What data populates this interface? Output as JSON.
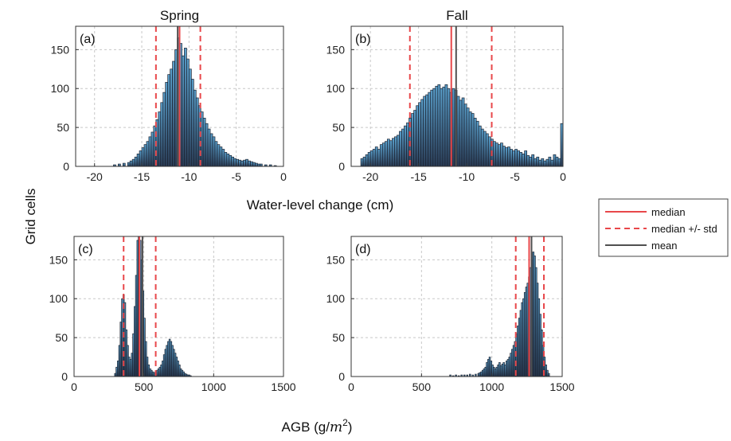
{
  "figure": {
    "ylabel": "Grid cells",
    "xlabel_top": "Water-level change (cm)",
    "xlabel_bottom_prefix": "AGB (g/",
    "xlabel_bottom_var": "m",
    "xlabel_bottom_exp": "2",
    "xlabel_bottom_suffix": ")"
  },
  "legend": {
    "items": [
      {
        "label": "median",
        "color": "#e8474a",
        "style": "solid"
      },
      {
        "label": "median +/- std",
        "color": "#e8474a",
        "style": "dashed"
      },
      {
        "label": "mean",
        "color": "#505050",
        "style": "solid"
      }
    ]
  },
  "colors": {
    "bar_top": "#5aa0cc",
    "bar_bottom": "#2a3c55",
    "bar_edge": "#1b2230",
    "median": "#e8474a",
    "mean": "#505050"
  },
  "chart_data": [
    {
      "type": "bar",
      "id": "a",
      "title": "Spring",
      "tag": "(a)",
      "xlim": [
        -22,
        0
      ],
      "ylim": [
        0,
        180
      ],
      "xticks": [
        -20,
        -15,
        -10,
        -5,
        0
      ],
      "yticks": [
        0,
        50,
        100,
        150
      ],
      "grid": true,
      "bin_width": 0.25,
      "bins": [
        [
          -18.0,
          2
        ],
        [
          -17.5,
          3
        ],
        [
          -17.0,
          4
        ],
        [
          -16.5,
          5
        ],
        [
          -16.25,
          7
        ],
        [
          -16.0,
          9
        ],
        [
          -15.75,
          12
        ],
        [
          -15.5,
          16
        ],
        [
          -15.25,
          20
        ],
        [
          -15.0,
          24
        ],
        [
          -14.75,
          28
        ],
        [
          -14.5,
          32
        ],
        [
          -14.25,
          38
        ],
        [
          -14.0,
          44
        ],
        [
          -13.75,
          52
        ],
        [
          -13.5,
          60
        ],
        [
          -13.25,
          70
        ],
        [
          -13.0,
          82
        ],
        [
          -12.75,
          95
        ],
        [
          -12.5,
          108
        ],
        [
          -12.25,
          118
        ],
        [
          -12.0,
          125
        ],
        [
          -11.75,
          135
        ],
        [
          -11.5,
          150
        ],
        [
          -11.25,
          165
        ],
        [
          -11.0,
          158
        ],
        [
          -10.75,
          142
        ],
        [
          -10.5,
          152
        ],
        [
          -10.25,
          138
        ],
        [
          -10.0,
          125
        ],
        [
          -9.75,
          112
        ],
        [
          -9.5,
          98
        ],
        [
          -9.25,
          88
        ],
        [
          -9.0,
          78
        ],
        [
          -8.75,
          70
        ],
        [
          -8.5,
          62
        ],
        [
          -8.25,
          55
        ],
        [
          -8.0,
          48
        ],
        [
          -7.75,
          42
        ],
        [
          -7.5,
          38
        ],
        [
          -7.25,
          32
        ],
        [
          -7.0,
          28
        ],
        [
          -6.75,
          25
        ],
        [
          -6.5,
          22
        ],
        [
          -6.25,
          18
        ],
        [
          -6.0,
          16
        ],
        [
          -5.75,
          14
        ],
        [
          -5.5,
          12
        ],
        [
          -5.25,
          10
        ],
        [
          -5.0,
          9
        ],
        [
          -4.75,
          8
        ],
        [
          -4.5,
          7
        ],
        [
          -4.25,
          8
        ],
        [
          -4.0,
          9
        ],
        [
          -3.75,
          7
        ],
        [
          -3.5,
          6
        ],
        [
          -3.25,
          5
        ],
        [
          -3.0,
          4
        ],
        [
          -2.75,
          3
        ],
        [
          -2.5,
          3
        ],
        [
          -2.0,
          2
        ],
        [
          -1.5,
          2
        ],
        [
          -1.0,
          1
        ]
      ],
      "median": -11.0,
      "median_minus_std": -13.5,
      "median_plus_std": -8.8,
      "mean": -11.2
    },
    {
      "type": "bar",
      "id": "b",
      "title": "Fall",
      "tag": "(b)",
      "xlim": [
        -22,
        0
      ],
      "ylim": [
        0,
        180
      ],
      "xticks": [
        -20,
        -15,
        -10,
        -5,
        0
      ],
      "yticks": [
        0,
        50,
        100,
        150
      ],
      "grid": true,
      "bin_width": 0.25,
      "bins": [
        [
          -21.0,
          10
        ],
        [
          -20.75,
          12
        ],
        [
          -20.5,
          15
        ],
        [
          -20.25,
          18
        ],
        [
          -20.0,
          20
        ],
        [
          -19.75,
          22
        ],
        [
          -19.5,
          25
        ],
        [
          -19.25,
          22
        ],
        [
          -19.0,
          28
        ],
        [
          -18.75,
          30
        ],
        [
          -18.5,
          32
        ],
        [
          -18.25,
          35
        ],
        [
          -18.0,
          33
        ],
        [
          -17.75,
          36
        ],
        [
          -17.5,
          38
        ],
        [
          -17.25,
          40
        ],
        [
          -17.0,
          45
        ],
        [
          -16.75,
          48
        ],
        [
          -16.5,
          52
        ],
        [
          -16.25,
          56
        ],
        [
          -16.0,
          62
        ],
        [
          -15.75,
          68
        ],
        [
          -15.5,
          72
        ],
        [
          -15.25,
          78
        ],
        [
          -15.0,
          82
        ],
        [
          -14.75,
          86
        ],
        [
          -14.5,
          90
        ],
        [
          -14.25,
          92
        ],
        [
          -14.0,
          95
        ],
        [
          -13.75,
          98
        ],
        [
          -13.5,
          100
        ],
        [
          -13.25,
          103
        ],
        [
          -13.0,
          105
        ],
        [
          -12.75,
          100
        ],
        [
          -12.5,
          102
        ],
        [
          -12.25,
          105
        ],
        [
          -12.0,
          100
        ],
        [
          -11.75,
          95
        ],
        [
          -11.5,
          100
        ],
        [
          -11.25,
          98
        ],
        [
          -11.0,
          90
        ],
        [
          -10.75,
          85
        ],
        [
          -10.5,
          88
        ],
        [
          -10.25,
          80
        ],
        [
          -10.0,
          75
        ],
        [
          -9.75,
          70
        ],
        [
          -9.5,
          68
        ],
        [
          -9.25,
          62
        ],
        [
          -9.0,
          58
        ],
        [
          -8.75,
          52
        ],
        [
          -8.5,
          48
        ],
        [
          -8.25,
          45
        ],
        [
          -8.0,
          42
        ],
        [
          -7.75,
          38
        ],
        [
          -7.5,
          35
        ],
        [
          -7.25,
          32
        ],
        [
          -7.0,
          30
        ],
        [
          -6.75,
          28
        ],
        [
          -6.5,
          30
        ],
        [
          -6.25,
          26
        ],
        [
          -6.0,
          24
        ],
        [
          -5.75,
          25
        ],
        [
          -5.5,
          22
        ],
        [
          -5.25,
          20
        ],
        [
          -5.0,
          22
        ],
        [
          -4.75,
          20
        ],
        [
          -4.5,
          18
        ],
        [
          -4.25,
          16
        ],
        [
          -4.0,
          20
        ],
        [
          -3.75,
          14
        ],
        [
          -3.5,
          12
        ],
        [
          -3.25,
          15
        ],
        [
          -3.0,
          10
        ],
        [
          -2.75,
          12
        ],
        [
          -2.5,
          8
        ],
        [
          -2.25,
          10
        ],
        [
          -2.0,
          7
        ],
        [
          -1.75,
          9
        ],
        [
          -1.5,
          12
        ],
        [
          -1.25,
          8
        ],
        [
          -1.0,
          15
        ],
        [
          -0.75,
          12
        ],
        [
          -0.5,
          10
        ],
        [
          -0.25,
          55
        ]
      ],
      "median": -11.6,
      "median_minus_std": -15.9,
      "median_plus_std": -7.4,
      "mean": -11.1
    },
    {
      "type": "bar",
      "id": "c",
      "tag": "(c)",
      "xlim": [
        0,
        1500
      ],
      "ylim": [
        0,
        180
      ],
      "xticks": [
        0,
        500,
        1000,
        1500
      ],
      "yticks": [
        0,
        50,
        100,
        150
      ],
      "grid": true,
      "bin_width": 10,
      "bins": [
        [
          290,
          4
        ],
        [
          300,
          12
        ],
        [
          310,
          20
        ],
        [
          320,
          40
        ],
        [
          330,
          70
        ],
        [
          340,
          100
        ],
        [
          350,
          105
        ],
        [
          360,
          95
        ],
        [
          370,
          60
        ],
        [
          380,
          40
        ],
        [
          390,
          25
        ],
        [
          400,
          22
        ],
        [
          410,
          30
        ],
        [
          420,
          55
        ],
        [
          430,
          90
        ],
        [
          440,
          130
        ],
        [
          450,
          175
        ],
        [
          460,
          180
        ],
        [
          470,
          175
        ],
        [
          480,
          150
        ],
        [
          490,
          110
        ],
        [
          500,
          75
        ],
        [
          510,
          45
        ],
        [
          520,
          25
        ],
        [
          530,
          15
        ],
        [
          540,
          10
        ],
        [
          550,
          8
        ],
        [
          560,
          6
        ],
        [
          570,
          5
        ],
        [
          580,
          6
        ],
        [
          590,
          8
        ],
        [
          600,
          10
        ],
        [
          610,
          12
        ],
        [
          620,
          15
        ],
        [
          630,
          20
        ],
        [
          640,
          28
        ],
        [
          650,
          35
        ],
        [
          660,
          40
        ],
        [
          670,
          45
        ],
        [
          680,
          48
        ],
        [
          690,
          45
        ],
        [
          700,
          40
        ],
        [
          710,
          35
        ],
        [
          720,
          30
        ],
        [
          730,
          25
        ],
        [
          740,
          20
        ],
        [
          750,
          15
        ],
        [
          760,
          10
        ],
        [
          770,
          8
        ],
        [
          780,
          6
        ],
        [
          790,
          4
        ],
        [
          800,
          3
        ],
        [
          810,
          2
        ],
        [
          820,
          2
        ],
        [
          830,
          1
        ]
      ],
      "median": 468,
      "median_minus_std": 355,
      "median_plus_std": 585,
      "mean": 490
    },
    {
      "type": "bar",
      "id": "d",
      "tag": "(d)",
      "xlim": [
        0,
        1500
      ],
      "ylim": [
        0,
        180
      ],
      "xticks": [
        0,
        500,
        1000,
        1500
      ],
      "yticks": [
        0,
        50,
        100,
        150
      ],
      "grid": true,
      "bin_width": 10,
      "bins": [
        [
          700,
          2
        ],
        [
          720,
          1
        ],
        [
          740,
          2
        ],
        [
          760,
          1
        ],
        [
          780,
          2
        ],
        [
          800,
          2
        ],
        [
          820,
          2
        ],
        [
          840,
          3
        ],
        [
          860,
          2
        ],
        [
          880,
          3
        ],
        [
          900,
          4
        ],
        [
          910,
          5
        ],
        [
          920,
          6
        ],
        [
          930,
          8
        ],
        [
          940,
          10
        ],
        [
          950,
          12
        ],
        [
          960,
          18
        ],
        [
          970,
          22
        ],
        [
          980,
          25
        ],
        [
          990,
          20
        ],
        [
          1000,
          15
        ],
        [
          1010,
          12
        ],
        [
          1020,
          10
        ],
        [
          1030,
          12
        ],
        [
          1040,
          15
        ],
        [
          1050,
          18
        ],
        [
          1060,
          14
        ],
        [
          1070,
          16
        ],
        [
          1080,
          18
        ],
        [
          1090,
          15
        ],
        [
          1100,
          20
        ],
        [
          1110,
          22
        ],
        [
          1120,
          25
        ],
        [
          1130,
          30
        ],
        [
          1140,
          35
        ],
        [
          1150,
          40
        ],
        [
          1160,
          45
        ],
        [
          1170,
          55
        ],
        [
          1180,
          65
        ],
        [
          1190,
          75
        ],
        [
          1200,
          85
        ],
        [
          1210,
          95
        ],
        [
          1220,
          100
        ],
        [
          1230,
          108
        ],
        [
          1240,
          115
        ],
        [
          1250,
          120
        ],
        [
          1260,
          128
        ],
        [
          1270,
          140
        ],
        [
          1280,
          150
        ],
        [
          1290,
          160
        ],
        [
          1300,
          155
        ],
        [
          1310,
          140
        ],
        [
          1320,
          120
        ],
        [
          1330,
          100
        ],
        [
          1340,
          80
        ],
        [
          1350,
          60
        ],
        [
          1360,
          40
        ],
        [
          1370,
          25
        ],
        [
          1380,
          15
        ],
        [
          1390,
          8
        ],
        [
          1400,
          4
        ]
      ],
      "median": 1265,
      "median_minus_std": 1170,
      "median_plus_std": 1370,
      "mean": 1282
    }
  ]
}
